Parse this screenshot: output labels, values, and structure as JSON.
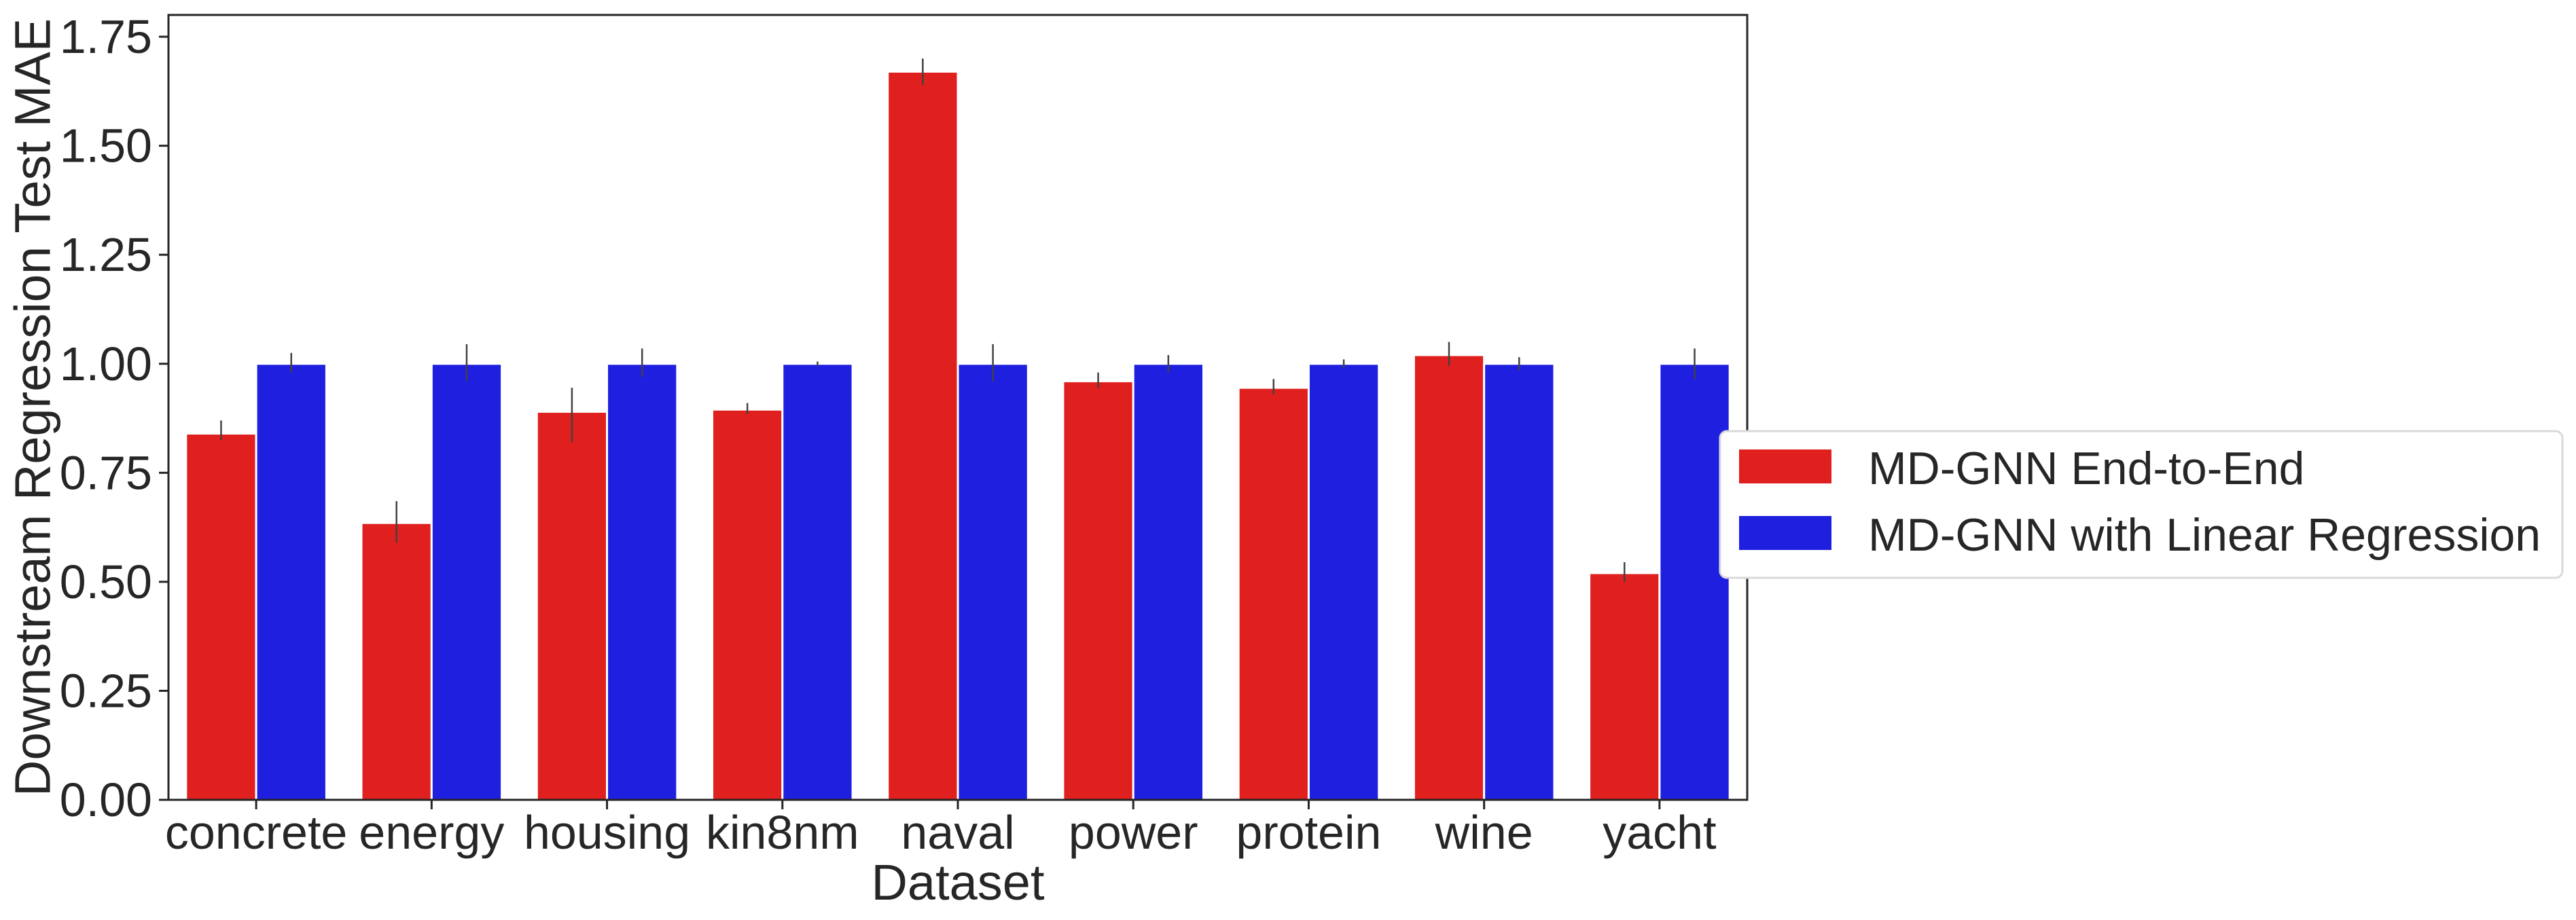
{
  "chart_data": {
    "type": "bar",
    "title": "",
    "xlabel": "Dataset",
    "ylabel": "Downstream Regression Test MAE",
    "categories": [
      "concrete",
      "energy",
      "housing",
      "kin8nm",
      "naval",
      "power",
      "protein",
      "wine",
      "yacht"
    ],
    "series": [
      {
        "name": "MD-GNN End-to-End",
        "color": "#e01f1f",
        "values": [
          0.84,
          0.635,
          0.89,
          0.895,
          1.67,
          0.96,
          0.945,
          1.02,
          0.52
        ],
        "err_low": [
          0.825,
          0.59,
          0.82,
          0.885,
          1.64,
          0.945,
          0.93,
          0.995,
          0.5
        ],
        "err_high": [
          0.87,
          0.685,
          0.945,
          0.91,
          1.7,
          0.98,
          0.965,
          1.05,
          0.545
        ]
      },
      {
        "name": "MD-GNN with Linear Regression",
        "color": "#1f1fe0",
        "values": [
          1.0,
          1.0,
          1.0,
          1.0,
          1.0,
          1.0,
          1.0,
          1.0,
          1.0
        ],
        "err_low": [
          0.98,
          0.96,
          0.97,
          0.995,
          0.96,
          0.98,
          0.99,
          0.985,
          0.965
        ],
        "err_high": [
          1.025,
          1.045,
          1.035,
          1.005,
          1.045,
          1.02,
          1.01,
          1.015,
          1.035
        ]
      }
    ],
    "ylim": [
      0.0,
      1.8
    ],
    "yticks": [
      "0.00",
      "0.25",
      "0.50",
      "0.75",
      "1.00",
      "1.25",
      "1.50",
      "1.75"
    ],
    "grid": false,
    "legend_position": "right"
  }
}
